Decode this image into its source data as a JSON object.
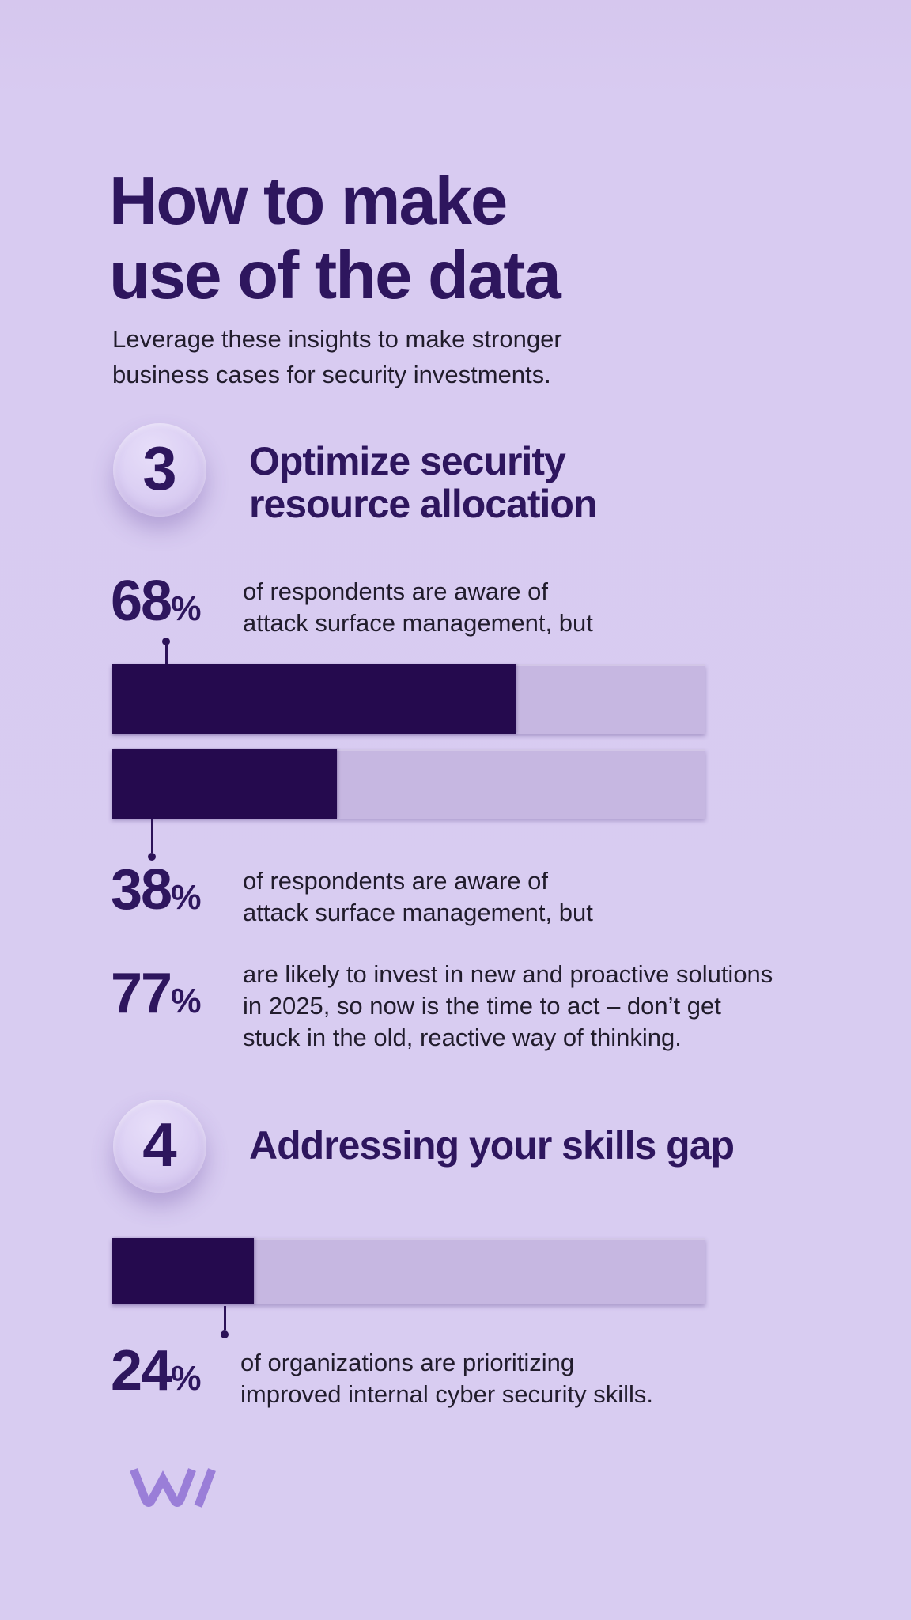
{
  "header": {
    "title": "How to make\nuse of the data",
    "subtitle": "Leverage these insights to make stronger\nbusiness cases for security investments."
  },
  "sections": [
    {
      "number": "3",
      "heading": "Optimize security\nresource allocation"
    },
    {
      "number": "4",
      "heading": "Addressing your skills gap"
    }
  ],
  "stats": [
    {
      "value": "68",
      "suffix": "%",
      "description": "of respondents are aware of\nattack surface management, but"
    },
    {
      "value": "38",
      "suffix": "%",
      "description": "of respondents are aware of\nattack surface management, but"
    },
    {
      "value": "77",
      "suffix": "%",
      "description": "are likely to invest in new and proactive solutions\nin 2025, so now is the time to act – don’t get\nstuck in the old, reactive way of thinking."
    },
    {
      "value": "24",
      "suffix": "%",
      "description": "of organizations are prioritizing\nimproved internal cyber security skills."
    }
  ],
  "chart_data": {
    "type": "bar",
    "orientation": "horizontal",
    "x_range": [
      0,
      100
    ],
    "unit": "percent",
    "grid": false,
    "legend": "none",
    "bars": [
      {
        "label": "68% of respondents are aware of attack surface management, but",
        "value": 68
      },
      {
        "label": "38% of respondents are aware of attack surface management, but",
        "value": 38
      },
      {
        "label": "24% of organizations are prioritizing improved internal cyber security skills.",
        "value": 24
      }
    ],
    "bar_color": "#250a4e",
    "track_color": "#c6b7e1"
  },
  "branding": {
    "logo": "withsecure-w-slash-mark"
  },
  "colors": {
    "background": "#d8cbf0",
    "heading": "#2e165e",
    "body_text": "#211c2c",
    "bar_fill": "#250a4e",
    "bar_track": "#c6b7e1",
    "logo": "#9a7ed8"
  }
}
